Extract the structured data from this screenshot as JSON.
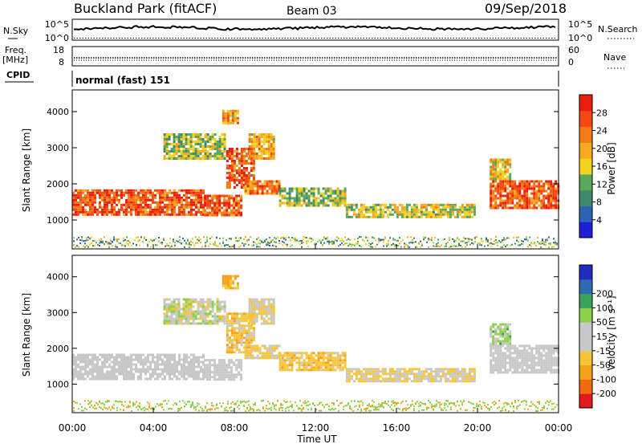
{
  "header": {
    "station": "Buckland Park (fitACF)",
    "beam": "Beam 03",
    "date": "09/Sep/2018"
  },
  "top_panels": {
    "nsky_label": "N.Sky",
    "nsky_ticks": [
      "10^5",
      "10^0"
    ],
    "nsearch_label": "N.Search",
    "nsearch_ticks": [
      "10^5",
      "10^0"
    ],
    "freq_label": "Freq.",
    "freq_unit": "[MHz]",
    "freq_ticks": [
      "18",
      "8"
    ],
    "nave_label": "Nave",
    "nave_ticks": [
      "60",
      "0"
    ],
    "cpid_label": "CPID",
    "cpid_value": "normal (fast) 151"
  },
  "colors": {
    "power_scale": [
      "#1f1fd6",
      "#2e62b8",
      "#3f8a6a",
      "#5aa85a",
      "#f0d21f",
      "#f7a81e",
      "#f37a15",
      "#f24a10",
      "#ee1c0e"
    ],
    "velocity_scale": [
      "#e31a1c",
      "#f06a10",
      "#f5a21a",
      "#f7c53a",
      "#c8c8c8",
      "#c8c8c8",
      "#8bd14a",
      "#3aa35a",
      "#2f6bb3",
      "#1f2bbd"
    ],
    "noise": [
      "#2e62b8",
      "#3f8a6a",
      "#5aa85a",
      "#f0d21f",
      "#f7a81e",
      "#8bd14a"
    ]
  },
  "chart_data": [
    {
      "type": "heatmap",
      "name": "Power",
      "ylabel": "Slant Range [km]",
      "yticks": [
        1000,
        2000,
        3000,
        4000
      ],
      "ylim": [
        200,
        4600
      ],
      "xlim": [
        0,
        24
      ],
      "colorbar_label": "Power [dB]",
      "colorbar_ticks": [
        "4",
        "8",
        "12",
        "16",
        "20",
        "24",
        "28"
      ],
      "colorbar_range": [
        0,
        32
      ]
    },
    {
      "type": "heatmap",
      "name": "Velocity",
      "ylabel": "Slant Range [km]",
      "yticks": [
        1000,
        2000,
        3000,
        4000
      ],
      "ylim": [
        200,
        4600
      ],
      "xlim": [
        0,
        24
      ],
      "colorbar_label": "Velocity [m s⁻¹]",
      "colorbar_ticks": [
        "-200",
        "-100",
        "-50",
        "-15",
        "15",
        "50",
        "100",
        "200"
      ]
    }
  ],
  "x_axis": {
    "ticks": [
      "00:00",
      "04:00",
      "08:00",
      "12:00",
      "16:00",
      "20:00",
      "00:00"
    ],
    "label": "Time UT"
  },
  "echo_regions": [
    {
      "t0": 0.0,
      "t1": 6.5,
      "r0": 1150,
      "r1": 1850,
      "pw": [
        20,
        32
      ],
      "vel": [
        -15,
        15
      ]
    },
    {
      "t0": 6.5,
      "t1": 8.3,
      "r0": 1150,
      "r1": 1700,
      "pw": [
        18,
        32
      ],
      "vel": [
        -15,
        15
      ]
    },
    {
      "t0": 4.5,
      "t1": 7.5,
      "r0": 2700,
      "r1": 3400,
      "pw": [
        8,
        20
      ],
      "vel": [
        -30,
        30
      ]
    },
    {
      "t0": 7.6,
      "t1": 9.0,
      "r0": 1900,
      "r1": 3000,
      "pw": [
        20,
        32
      ],
      "vel": [
        -60,
        0
      ]
    },
    {
      "t0": 8.5,
      "t1": 10.2,
      "r0": 1700,
      "r1": 2100,
      "pw": [
        16,
        30
      ],
      "vel": [
        -40,
        0
      ]
    },
    {
      "t0": 8.7,
      "t1": 10.0,
      "r0": 2700,
      "r1": 3400,
      "pw": [
        14,
        26
      ],
      "vel": [
        -30,
        10
      ]
    },
    {
      "t0": 10.2,
      "t1": 13.5,
      "r0": 1400,
      "r1": 1900,
      "pw": [
        8,
        20
      ],
      "vel": [
        -60,
        -10
      ]
    },
    {
      "t0": 13.5,
      "t1": 19.8,
      "r0": 1100,
      "r1": 1450,
      "pw": [
        10,
        22
      ],
      "vel": [
        -40,
        10
      ]
    },
    {
      "t0": 20.6,
      "t1": 24.0,
      "r0": 1300,
      "r1": 2100,
      "pw": [
        20,
        32
      ],
      "vel": [
        -15,
        15
      ]
    },
    {
      "t0": 20.6,
      "t1": 21.6,
      "r0": 2100,
      "r1": 2700,
      "pw": [
        12,
        24
      ],
      "vel": [
        -15,
        60
      ]
    },
    {
      "t0": 7.4,
      "t1": 8.2,
      "r0": 3700,
      "r1": 4050,
      "pw": [
        14,
        28
      ],
      "vel": [
        -80,
        -20
      ]
    }
  ]
}
